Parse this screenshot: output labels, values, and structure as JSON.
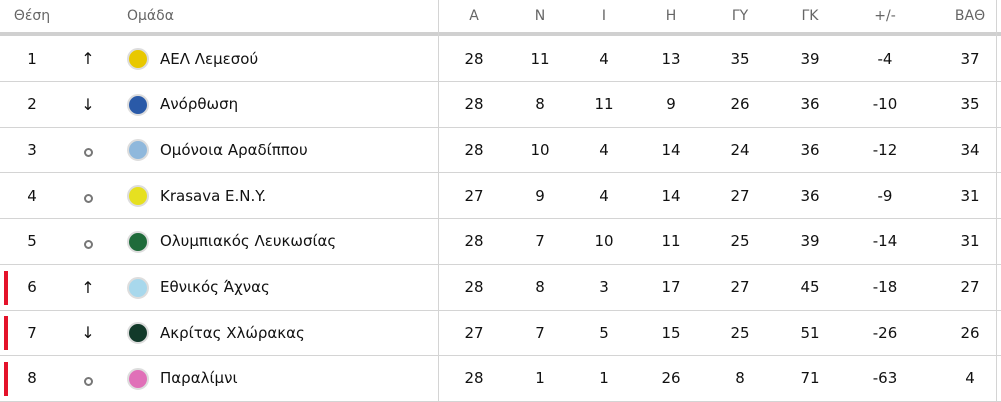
{
  "headers": {
    "pos": "Θέση",
    "team": "Ομάδα",
    "played": "Α",
    "won": "Ν",
    "draw": "Ι",
    "lost": "Η",
    "gf": "ΓΥ",
    "ga": "ΓΚ",
    "diff": "+/-",
    "pts": "ΒΑΘ"
  },
  "colors": {
    "relegation": "#e4122a"
  },
  "rows": [
    {
      "pos": "1",
      "trend": "up",
      "team": "ΑΕΛ Λεμεσού",
      "logo": "#e8c800",
      "played": "28",
      "won": "11",
      "draw": "4",
      "lost": "13",
      "gf": "35",
      "ga": "39",
      "diff": "-4",
      "pts": "37",
      "relegation": false
    },
    {
      "pos": "2",
      "trend": "down",
      "team": "Ανόρθωση",
      "logo": "#2a5aa8",
      "played": "28",
      "won": "8",
      "draw": "11",
      "lost": "9",
      "gf": "26",
      "ga": "36",
      "diff": "-10",
      "pts": "35",
      "relegation": false
    },
    {
      "pos": "3",
      "trend": "same",
      "team": "Ομόνοια Αραδίππου",
      "logo": "#8fb8dc",
      "played": "28",
      "won": "10",
      "draw": "4",
      "lost": "14",
      "gf": "24",
      "ga": "36",
      "diff": "-12",
      "pts": "34",
      "relegation": false
    },
    {
      "pos": "4",
      "trend": "same",
      "team": "Krasava E.N.Y.",
      "logo": "#e6e020",
      "played": "27",
      "won": "9",
      "draw": "4",
      "lost": "14",
      "gf": "27",
      "ga": "36",
      "diff": "-9",
      "pts": "31",
      "relegation": false
    },
    {
      "pos": "5",
      "trend": "same",
      "team": "Ολυμπιακός Λευκωσίας",
      "logo": "#1f6b3a",
      "played": "28",
      "won": "7",
      "draw": "10",
      "lost": "11",
      "gf": "25",
      "ga": "39",
      "diff": "-14",
      "pts": "31",
      "relegation": false
    },
    {
      "pos": "6",
      "trend": "up",
      "team": "Εθνικός Άχνας",
      "logo": "#a8d8ec",
      "played": "28",
      "won": "8",
      "draw": "3",
      "lost": "17",
      "gf": "27",
      "ga": "45",
      "diff": "-18",
      "pts": "27",
      "relegation": true
    },
    {
      "pos": "7",
      "trend": "down",
      "team": "Ακρίτας Χλώρακας",
      "logo": "#123a2a",
      "played": "27",
      "won": "7",
      "draw": "5",
      "lost": "15",
      "gf": "25",
      "ga": "51",
      "diff": "-26",
      "pts": "26",
      "relegation": true
    },
    {
      "pos": "8",
      "trend": "same",
      "team": "Παραλίμνι",
      "logo": "#e070b8",
      "played": "28",
      "won": "1",
      "draw": "1",
      "lost": "26",
      "gf": "8",
      "ga": "71",
      "diff": "-63",
      "pts": "4",
      "relegation": true
    }
  ]
}
